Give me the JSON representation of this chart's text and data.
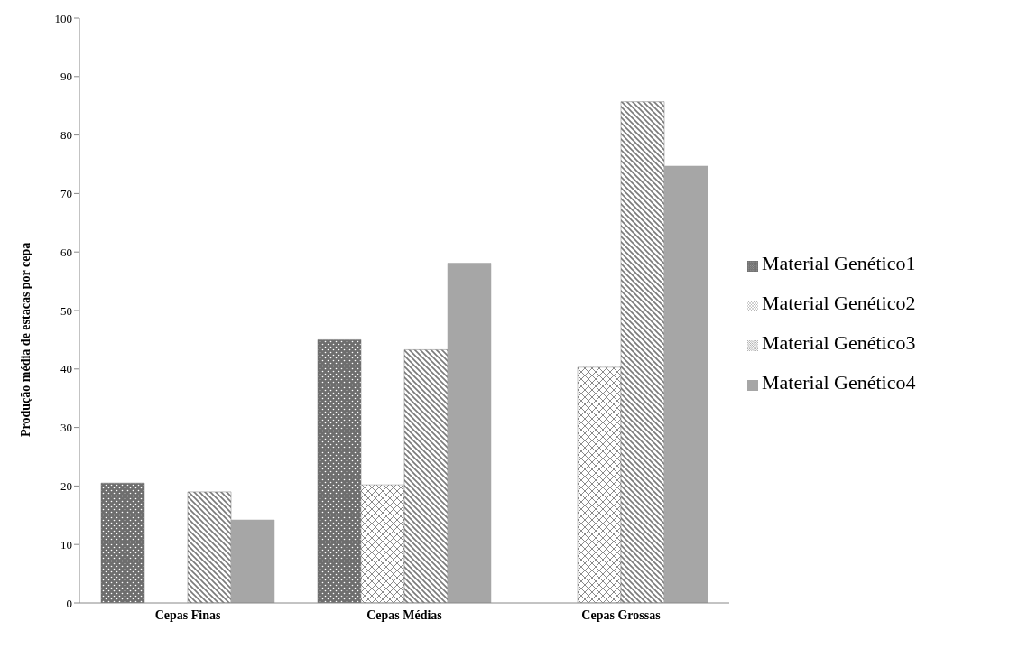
{
  "chart_data": {
    "type": "bar",
    "ylabel": "Produção média de estacas por cepa",
    "categories": [
      "Cepas Finas",
      "Cepas Médias",
      "Cepas Grossas"
    ],
    "series": [
      {
        "name": "Material Genético1",
        "color": "#6e6e6e",
        "values": [
          20.5,
          45.0,
          null
        ]
      },
      {
        "name": "Material Genético2",
        "color": "#8a8a8a",
        "values": [
          null,
          20.2,
          40.3
        ]
      },
      {
        "name": "Material Genético3",
        "color": "#7a7a7a",
        "values": [
          19.0,
          43.3,
          85.7
        ]
      },
      {
        "name": "Material Genético4",
        "color": "#a6a6a6",
        "values": [
          14.2,
          58.1,
          74.7
        ]
      }
    ],
    "ylim": [
      0,
      100
    ],
    "yticks": [
      0,
      10,
      20,
      30,
      40,
      50,
      60,
      70,
      80,
      90,
      100
    ],
    "grid": false,
    "legend": "right"
  }
}
